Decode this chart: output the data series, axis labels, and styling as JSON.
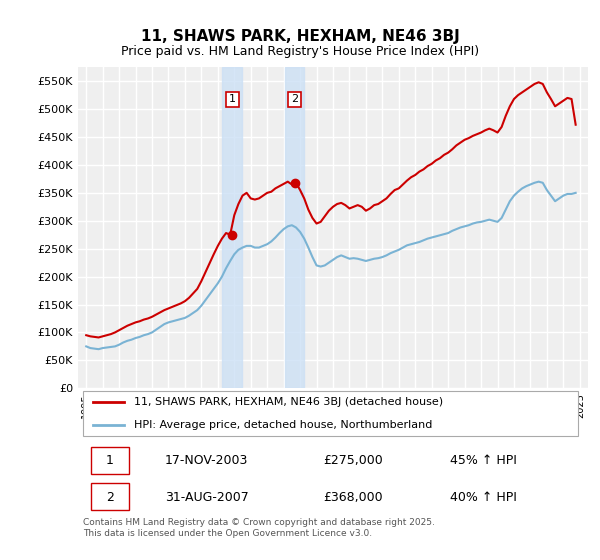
{
  "title": "11, SHAWS PARK, HEXHAM, NE46 3BJ",
  "subtitle": "Price paid vs. HM Land Registry's House Price Index (HPI)",
  "ylim": [
    0,
    575000
  ],
  "yticks": [
    0,
    50000,
    100000,
    150000,
    200000,
    250000,
    300000,
    350000,
    400000,
    450000,
    500000,
    550000
  ],
  "ytick_labels": [
    "£0",
    "£50K",
    "£100K",
    "£150K",
    "£200K",
    "£250K",
    "£300K",
    "£350K",
    "£400K",
    "£450K",
    "£500K",
    "£550K"
  ],
  "background_color": "#ffffff",
  "plot_background": "#efefef",
  "grid_color": "#ffffff",
  "sale1_price": 275000,
  "sale1_label": "1",
  "sale1_year": 2003.88,
  "sale2_price": 368000,
  "sale2_label": "2",
  "sale2_year": 2007.66,
  "shade_color": "#cce0f5",
  "red_color": "#cc0000",
  "blue_color": "#7ab3d4",
  "legend1": "11, SHAWS PARK, HEXHAM, NE46 3BJ (detached house)",
  "legend2": "HPI: Average price, detached house, Northumberland",
  "table_row1": [
    "1",
    "17-NOV-2003",
    "£275,000",
    "45% ↑ HPI"
  ],
  "table_row2": [
    "2",
    "31-AUG-2007",
    "£368,000",
    "40% ↑ HPI"
  ],
  "footer": "Contains HM Land Registry data © Crown copyright and database right 2025.\nThis data is licensed under the Open Government Licence v3.0.",
  "hpi_data": {
    "years": [
      1995.0,
      1995.25,
      1995.5,
      1995.75,
      1996.0,
      1996.25,
      1996.5,
      1996.75,
      1997.0,
      1997.25,
      1997.5,
      1997.75,
      1998.0,
      1998.25,
      1998.5,
      1998.75,
      1999.0,
      1999.25,
      1999.5,
      1999.75,
      2000.0,
      2000.25,
      2000.5,
      2000.75,
      2001.0,
      2001.25,
      2001.5,
      2001.75,
      2002.0,
      2002.25,
      2002.5,
      2002.75,
      2003.0,
      2003.25,
      2003.5,
      2003.75,
      2004.0,
      2004.25,
      2004.5,
      2004.75,
      2005.0,
      2005.25,
      2005.5,
      2005.75,
      2006.0,
      2006.25,
      2006.5,
      2006.75,
      2007.0,
      2007.25,
      2007.5,
      2007.75,
      2008.0,
      2008.25,
      2008.5,
      2008.75,
      2009.0,
      2009.25,
      2009.5,
      2009.75,
      2010.0,
      2010.25,
      2010.5,
      2010.75,
      2011.0,
      2011.25,
      2011.5,
      2011.75,
      2012.0,
      2012.25,
      2012.5,
      2012.75,
      2013.0,
      2013.25,
      2013.5,
      2013.75,
      2014.0,
      2014.25,
      2014.5,
      2014.75,
      2015.0,
      2015.25,
      2015.5,
      2015.75,
      2016.0,
      2016.25,
      2016.5,
      2016.75,
      2017.0,
      2017.25,
      2017.5,
      2017.75,
      2018.0,
      2018.25,
      2018.5,
      2018.75,
      2019.0,
      2019.25,
      2019.5,
      2019.75,
      2020.0,
      2020.25,
      2020.5,
      2020.75,
      2021.0,
      2021.25,
      2021.5,
      2021.75,
      2022.0,
      2022.25,
      2022.5,
      2022.75,
      2023.0,
      2023.25,
      2023.5,
      2023.75,
      2024.0,
      2024.25,
      2024.5,
      2024.75
    ],
    "values": [
      75000,
      72000,
      71000,
      70000,
      72000,
      73000,
      74000,
      75000,
      78000,
      82000,
      85000,
      87000,
      90000,
      92000,
      95000,
      97000,
      100000,
      105000,
      110000,
      115000,
      118000,
      120000,
      122000,
      124000,
      126000,
      130000,
      135000,
      140000,
      148000,
      158000,
      168000,
      178000,
      188000,
      200000,
      215000,
      228000,
      240000,
      248000,
      252000,
      255000,
      255000,
      252000,
      252000,
      255000,
      258000,
      263000,
      270000,
      278000,
      285000,
      290000,
      292000,
      288000,
      280000,
      268000,
      252000,
      235000,
      220000,
      218000,
      220000,
      225000,
      230000,
      235000,
      238000,
      235000,
      232000,
      233000,
      232000,
      230000,
      228000,
      230000,
      232000,
      233000,
      235000,
      238000,
      242000,
      245000,
      248000,
      252000,
      256000,
      258000,
      260000,
      262000,
      265000,
      268000,
      270000,
      272000,
      274000,
      276000,
      278000,
      282000,
      285000,
      288000,
      290000,
      292000,
      295000,
      297000,
      298000,
      300000,
      302000,
      300000,
      298000,
      305000,
      320000,
      335000,
      345000,
      352000,
      358000,
      362000,
      365000,
      368000,
      370000,
      368000,
      355000,
      345000,
      335000,
      340000,
      345000,
      348000,
      348000,
      350000
    ]
  },
  "property_data": {
    "years": [
      1995.0,
      1995.25,
      1995.5,
      1995.75,
      1996.0,
      1996.25,
      1996.5,
      1996.75,
      1997.0,
      1997.25,
      1997.5,
      1997.75,
      1998.0,
      1998.25,
      1998.5,
      1998.75,
      1999.0,
      1999.25,
      1999.5,
      1999.75,
      2000.0,
      2000.25,
      2000.5,
      2000.75,
      2001.0,
      2001.25,
      2001.5,
      2001.75,
      2002.0,
      2002.25,
      2002.5,
      2002.75,
      2003.0,
      2003.25,
      2003.5,
      2003.75,
      2004.0,
      2004.25,
      2004.5,
      2004.75,
      2005.0,
      2005.25,
      2005.5,
      2005.75,
      2006.0,
      2006.25,
      2006.5,
      2006.75,
      2007.0,
      2007.25,
      2007.5,
      2007.75,
      2008.0,
      2008.25,
      2008.5,
      2008.75,
      2009.0,
      2009.25,
      2009.5,
      2009.75,
      2010.0,
      2010.25,
      2010.5,
      2010.75,
      2011.0,
      2011.25,
      2011.5,
      2011.75,
      2012.0,
      2012.25,
      2012.5,
      2012.75,
      2013.0,
      2013.25,
      2013.5,
      2013.75,
      2014.0,
      2014.25,
      2014.5,
      2014.75,
      2015.0,
      2015.25,
      2015.5,
      2015.75,
      2016.0,
      2016.25,
      2016.5,
      2016.75,
      2017.0,
      2017.25,
      2017.5,
      2017.75,
      2018.0,
      2018.25,
      2018.5,
      2018.75,
      2019.0,
      2019.25,
      2019.5,
      2019.75,
      2020.0,
      2020.25,
      2020.5,
      2020.75,
      2021.0,
      2021.25,
      2021.5,
      2021.75,
      2022.0,
      2022.25,
      2022.5,
      2022.75,
      2023.0,
      2023.25,
      2023.5,
      2023.75,
      2024.0,
      2024.25,
      2024.5,
      2024.75
    ],
    "values": [
      95000,
      93000,
      92000,
      91000,
      93000,
      95000,
      97000,
      100000,
      104000,
      108000,
      112000,
      115000,
      118000,
      120000,
      123000,
      125000,
      128000,
      132000,
      136000,
      140000,
      143000,
      146000,
      149000,
      152000,
      156000,
      162000,
      170000,
      178000,
      192000,
      208000,
      224000,
      240000,
      255000,
      268000,
      278000,
      275000,
      310000,
      330000,
      345000,
      350000,
      340000,
      338000,
      340000,
      345000,
      350000,
      352000,
      358000,
      362000,
      366000,
      370000,
      365000,
      368000,
      355000,
      340000,
      320000,
      305000,
      295000,
      298000,
      308000,
      318000,
      325000,
      330000,
      332000,
      328000,
      322000,
      325000,
      328000,
      325000,
      318000,
      322000,
      328000,
      330000,
      335000,
      340000,
      348000,
      355000,
      358000,
      365000,
      372000,
      378000,
      382000,
      388000,
      392000,
      398000,
      402000,
      408000,
      412000,
      418000,
      422000,
      428000,
      435000,
      440000,
      445000,
      448000,
      452000,
      455000,
      458000,
      462000,
      465000,
      462000,
      458000,
      468000,
      488000,
      505000,
      518000,
      525000,
      530000,
      535000,
      540000,
      545000,
      548000,
      545000,
      530000,
      518000,
      505000,
      510000,
      515000,
      520000,
      518000,
      472000
    ]
  }
}
